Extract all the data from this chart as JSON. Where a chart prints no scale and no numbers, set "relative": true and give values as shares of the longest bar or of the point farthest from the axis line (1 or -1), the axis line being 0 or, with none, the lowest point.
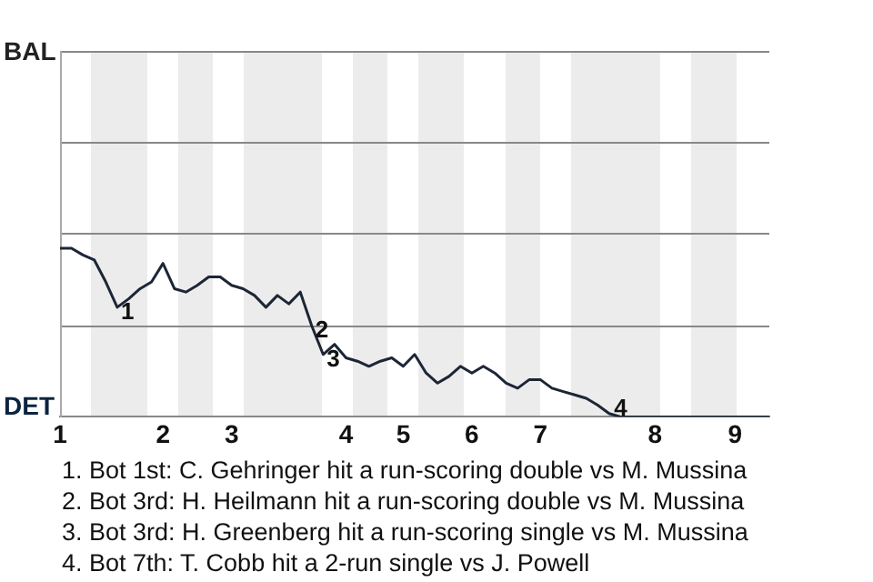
{
  "chart_data": {
    "type": "line",
    "relative": true,
    "categories": [
      "1",
      null,
      null,
      null,
      null,
      null,
      null,
      null,
      null,
      "2",
      null,
      null,
      null,
      null,
      null,
      "3",
      null,
      null,
      null,
      null,
      null,
      null,
      null,
      null,
      null,
      "4",
      null,
      null,
      null,
      null,
      "5",
      null,
      null,
      null,
      null,
      null,
      "6",
      null,
      null,
      null,
      null,
      null,
      "7",
      null,
      null,
      null,
      null,
      null,
      null,
      null,
      null,
      null,
      "8",
      null,
      null,
      null,
      null,
      null,
      null,
      "9",
      null,
      null,
      null
    ],
    "series": [
      {
        "color": "#1c2636",
        "values": [
          1,
          1,
          0.96,
          0.93,
          0.8,
          0.65,
          0.7,
          0.76,
          0.8,
          0.91,
          0.76,
          0.74,
          0.78,
          0.83,
          0.83,
          0.78,
          0.76,
          0.72,
          0.65,
          0.72,
          0.67,
          0.74,
          0.54,
          0.37,
          0.43,
          0.35,
          0.33,
          0.3,
          0.33,
          0.35,
          0.3,
          0.37,
          0.26,
          0.2,
          0.24,
          0.3,
          0.26,
          0.3,
          0.26,
          0.2,
          0.17,
          0.22,
          0.22,
          0.17,
          0.15,
          0.13,
          0.11,
          0.07,
          0.02,
          0,
          0,
          0,
          0,
          0,
          0,
          0,
          0,
          0,
          0,
          0,
          0,
          0,
          0
        ]
      }
    ],
    "legend": false,
    "marker": "none",
    "line_style": "solid",
    "ref_lines": [
      {
        "axis": "y",
        "value": 0.54,
        "color": "#888888"
      },
      {
        "axis": "y",
        "value": 1.09,
        "color": "#888888"
      },
      {
        "axis": "y",
        "value": 1.63,
        "color": "#888888"
      },
      {
        "axis": "y",
        "value": 2.17,
        "color": "#888888"
      }
    ],
    "annotations": [
      "BAL",
      "DET",
      {
        "text": "1",
        "y": 0.65
      },
      {
        "text": "2",
        "y": 0.54
      },
      {
        "text": "3",
        "y": 0.37
      },
      {
        "text": "4",
        "y": 0
      },
      "1. Bot 1st: C. Gehringer hit a run-scoring double vs M. Mussina",
      "2. Bot 3rd: H. Heilmann hit a run-scoring double vs M. Mussina",
      "3. Bot 3rd: H. Greenberg hit a run-scoring single vs M. Mussina",
      "4. Bot 7th: T. Cobb hit a 2-run single vs J. Powell"
    ]
  }
}
